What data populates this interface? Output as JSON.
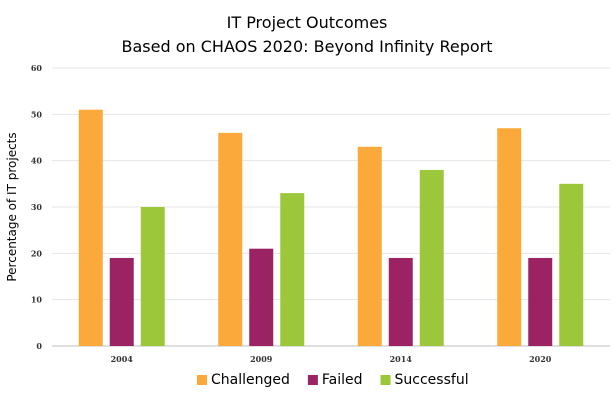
{
  "chart_data": {
    "type": "bar",
    "title": "IT Project Outcomes",
    "subtitle": "Based on CHAOS 2020: Beyond Infinity Report",
    "xlabel": "",
    "ylabel": "Percentage of IT projects",
    "categories": [
      "2004",
      "2009",
      "2014",
      "2020"
    ],
    "series": [
      {
        "name": "Challenged",
        "color": "#FBA93B",
        "values": [
          51,
          46,
          43,
          47
        ]
      },
      {
        "name": "Failed",
        "color": "#9B2364",
        "values": [
          19,
          21,
          19,
          19
        ]
      },
      {
        "name": "Successful",
        "color": "#9DC73A",
        "values": [
          30,
          33,
          38,
          35
        ]
      }
    ],
    "ylim": [
      0,
      60
    ],
    "yticks": [
      "0",
      "10",
      "20",
      "30",
      "40",
      "50",
      "60"
    ],
    "grid": true,
    "legend_position": "bottom"
  }
}
